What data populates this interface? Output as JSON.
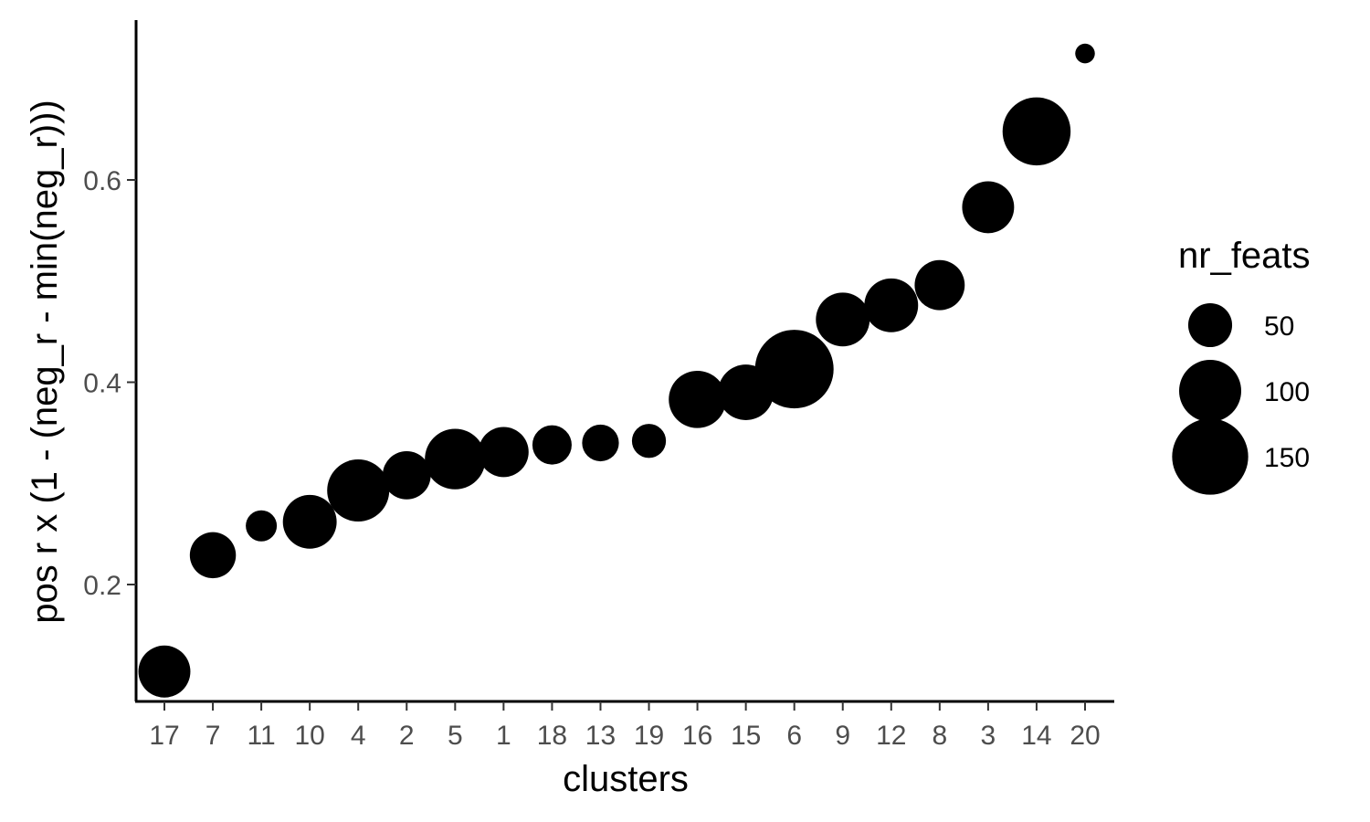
{
  "chart_data": {
    "type": "scatter",
    "xlabel": "clusters",
    "ylabel": "pos r x (1 - (neg_r - min(neg_r)))",
    "categories": [
      "17",
      "7",
      "11",
      "10",
      "4",
      "2",
      "5",
      "1",
      "18",
      "13",
      "19",
      "16",
      "15",
      "6",
      "9",
      "12",
      "8",
      "3",
      "14",
      "20"
    ],
    "values": [
      0.114,
      0.229,
      0.258,
      0.262,
      0.293,
      0.308,
      0.324,
      0.331,
      0.338,
      0.34,
      0.342,
      0.383,
      0.39,
      0.413,
      0.462,
      0.476,
      0.496,
      0.573,
      0.648,
      0.725
    ],
    "nr_feats": [
      70,
      55,
      25,
      75,
      100,
      60,
      95,
      65,
      40,
      35,
      30,
      85,
      80,
      160,
      75,
      75,
      65,
      70,
      120,
      10
    ],
    "yticks": [
      "0.2",
      "0.4",
      "0.6"
    ],
    "ylim": [
      0.09,
      0.755
    ],
    "grid": false,
    "legend": {
      "title": "nr_feats",
      "placement": "right",
      "entries": [
        {
          "label": "50",
          "value": 50
        },
        {
          "label": "100",
          "value": 100
        },
        {
          "label": "150",
          "value": 150
        }
      ]
    },
    "marker_color": "#000000"
  }
}
